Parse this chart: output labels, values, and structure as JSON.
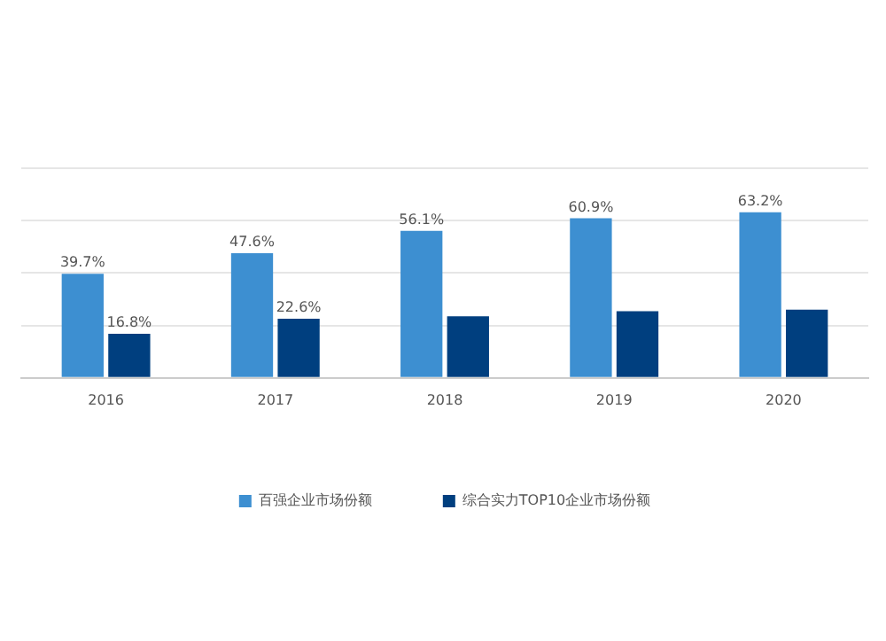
{
  "chart_data": {
    "type": "bar",
    "categories": [
      "2016",
      "2017",
      "2018",
      "2019",
      "2020"
    ],
    "series": [
      {
        "name": "百强企业市场份额",
        "color": "#3d8fd1",
        "values": [
          39.7,
          47.6,
          56.1,
          60.9,
          63.2
        ],
        "value_labels": [
          "39.7%",
          "47.6%",
          "56.1%",
          "60.9%",
          "63.2%"
        ]
      },
      {
        "name": "综合实力TOP10企业市场份额",
        "color": "#003f7f",
        "values": [
          16.8,
          22.6,
          23.5,
          25.4,
          26.0
        ],
        "value_labels": [
          "16.8%",
          "22.6%",
          null,
          null,
          null
        ]
      }
    ],
    "ylim": [
      0,
      80
    ],
    "yticks": [
      {
        "value": 0,
        "label": null
      },
      {
        "value": 20,
        "label": null
      },
      {
        "value": 40,
        "label": null
      },
      {
        "value": 60,
        "label": null
      },
      {
        "value": 80,
        "label": null
      }
    ],
    "grid": "y",
    "tick_labels": "x",
    "legend": "bottom"
  }
}
